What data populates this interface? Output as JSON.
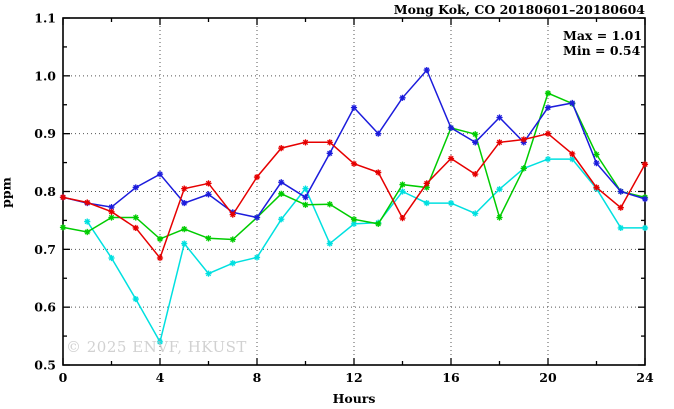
{
  "chart_data": {
    "type": "line",
    "title": "Mong Kok, CO 20180601–20180604",
    "xlabel": "Hours",
    "ylabel": "ppm",
    "xlim": [
      0,
      24
    ],
    "ylim": [
      0.5,
      1.1
    ],
    "x_major_ticks": [
      0,
      4,
      8,
      12,
      16,
      20,
      24
    ],
    "x_tick_labels": [
      "0",
      "4",
      "8",
      "12",
      "16",
      "20",
      "24"
    ],
    "x_minor_step": 2,
    "y_major_ticks": [
      0.5,
      0.6,
      0.7,
      0.8,
      0.9,
      1.0,
      1.1
    ],
    "y_tick_labels": [
      "0.5",
      "0.6",
      "0.7",
      "0.8",
      "0.9",
      "1.0",
      "1.1"
    ],
    "y_minor_step": 0.05,
    "grid": {
      "style": "dotted",
      "at_x_majors": true,
      "at_y_majors": true,
      "color": "#555555"
    },
    "legend_position": "none",
    "annotation": {
      "max_label": "Max = 1.01",
      "min_label": "Min = 0.54"
    },
    "watermark": "© 2025 ENVF, HKUST",
    "x": [
      0,
      1,
      2,
      3,
      4,
      5,
      6,
      7,
      8,
      9,
      10,
      11,
      12,
      13,
      14,
      15,
      16,
      17,
      18,
      19,
      20,
      21,
      22,
      23,
      24
    ],
    "series": [
      {
        "name": "series-cyan",
        "color": "#00e0e0",
        "values": [
          null,
          0.748,
          0.685,
          0.614,
          0.54,
          0.71,
          0.658,
          0.676,
          0.686,
          0.752,
          0.805,
          0.71,
          0.744,
          0.746,
          0.8,
          0.78,
          0.78,
          0.762,
          0.804,
          0.84,
          0.856,
          0.856,
          0.805,
          0.737,
          0.737
        ]
      },
      {
        "name": "series-green",
        "color": "#00cc00",
        "values": [
          0.738,
          0.73,
          0.755,
          0.755,
          0.718,
          0.735,
          0.719,
          0.717,
          0.755,
          0.796,
          0.777,
          0.778,
          0.752,
          0.744,
          0.812,
          0.807,
          0.91,
          0.899,
          0.755,
          0.84,
          0.97,
          0.952,
          0.864,
          0.8,
          0.79
        ]
      },
      {
        "name": "series-blue",
        "color": "#1c1cdc",
        "values": [
          0.79,
          0.78,
          0.773,
          0.807,
          0.83,
          0.78,
          0.795,
          0.764,
          0.755,
          0.816,
          0.79,
          0.866,
          0.945,
          0.9,
          0.962,
          1.01,
          0.91,
          0.885,
          0.928,
          0.885,
          0.945,
          0.953,
          0.849,
          0.8,
          0.787
        ]
      },
      {
        "name": "series-red",
        "color": "#e60000",
        "values": [
          0.79,
          0.781,
          0.765,
          0.737,
          0.685,
          0.805,
          0.814,
          0.76,
          0.825,
          0.875,
          0.885,
          0.885,
          0.848,
          0.833,
          0.754,
          0.814,
          0.857,
          0.83,
          0.885,
          0.89,
          0.9,
          0.865,
          0.807,
          0.772,
          0.847
        ]
      }
    ]
  }
}
